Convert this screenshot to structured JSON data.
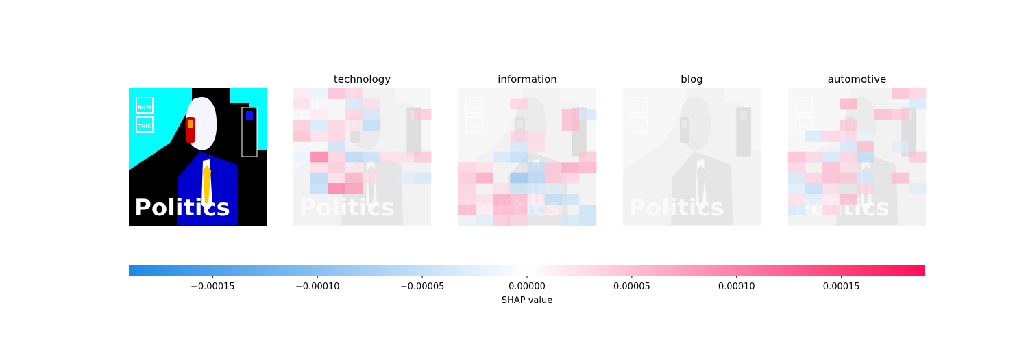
{
  "chart_data": {
    "type": "heatmap",
    "description_free": true,
    "panels": [
      {
        "name": "original",
        "title": "",
        "kind": "image"
      },
      {
        "name": "technology",
        "title": "technology",
        "kind": "shap",
        "values": [
          [
            2e-05,
            -2e-05,
            6e-05,
            4e-05,
            0.0,
            0.0,
            0.0,
            0.0
          ],
          [
            3e-05,
            0.0,
            0.0,
            -4e-05,
            3e-05,
            0.0,
            0.0,
            0.0
          ],
          [
            0.0,
            2e-05,
            0.0,
            4e-05,
            -4e-05,
            0.0,
            0.0,
            5e-05
          ],
          [
            5e-05,
            -4e-05,
            4e-05,
            2e-05,
            -6e-05,
            0.0,
            0.0,
            0.0
          ],
          [
            6e-05,
            3e-05,
            4e-05,
            0.0,
            0.0,
            0.0,
            0.0,
            0.0
          ],
          [
            0.0,
            0.0,
            -5e-05,
            0.0,
            0.0,
            0.0,
            0.0,
            0.0
          ],
          [
            -2e-05,
            0.00012,
            4e-05,
            -7e-05,
            -5e-05,
            3e-05,
            3e-05,
            5e-05
          ],
          [
            0.0,
            3e-05,
            5e-05,
            2e-05,
            0.0,
            0.0,
            0.0,
            0.0
          ],
          [
            0.0,
            -7e-05,
            3e-05,
            7e-05,
            3e-05,
            0.0,
            -3e-05,
            -4e-05
          ],
          [
            0.0,
            -6e-05,
            0.00012,
            9e-05,
            0.0,
            0.0,
            0.0,
            0.0
          ],
          [
            0.0,
            0.0,
            0.0,
            0.0,
            0.0,
            0.0,
            0.0,
            0.0
          ],
          [
            0.0,
            0.0,
            0.0,
            0.0,
            0.0,
            0.0,
            0.0,
            0.0
          ],
          [
            0.0,
            0.0,
            0.0,
            0.0,
            0.0,
            0.0,
            0.0,
            0.0
          ]
        ]
      },
      {
        "name": "information",
        "title": "information",
        "kind": "shap",
        "values": [
          [
            0.0,
            0.0,
            0.0,
            0.0,
            0.0,
            0.0,
            0.0,
            0.0
          ],
          [
            0.0,
            0.0,
            0.0,
            4e-05,
            0.0,
            0.0,
            0.0,
            0.0
          ],
          [
            0.0,
            0.0,
            0.0,
            0.0,
            0.0,
            0.0,
            6e-05,
            -4e-05
          ],
          [
            0.0,
            0.0,
            0.0,
            0.0,
            0.0,
            0.0,
            6e-05,
            0.0
          ],
          [
            0.0,
            0.0,
            0.0,
            4e-05,
            3e-05,
            0.0,
            0.0,
            0.0
          ],
          [
            0.0,
            0.0,
            0.0,
            -4e-05,
            3e-05,
            0.0,
            0.0,
            0.0
          ],
          [
            0.0,
            0.0,
            -4e-05,
            -6e-05,
            0.0,
            0.0,
            0.0,
            5e-05
          ],
          [
            4e-05,
            3e-05,
            0.0,
            0.0,
            -6e-05,
            5e-05,
            8e-05,
            7e-05
          ],
          [
            5e-05,
            8e-05,
            0.0,
            -0.0001,
            -7e-05,
            5e-05,
            4e-05,
            0.0
          ],
          [
            4e-05,
            0.0,
            3e-05,
            -5e-05,
            -4e-05,
            -3e-05,
            0.0,
            0.0
          ],
          [
            4e-05,
            3e-05,
            8e-05,
            6e-05,
            2e-05,
            -6e-05,
            -5e-05,
            0.0
          ],
          [
            7e-05,
            2e-05,
            7e-05,
            6e-05,
            -3e-05,
            2e-05,
            0.0,
            -5e-05
          ],
          [
            -2e-05,
            -3e-05,
            5e-05,
            4e-05,
            0.0,
            0.0,
            -4e-05,
            -5e-05
          ]
        ]
      },
      {
        "name": "blog",
        "title": "blog",
        "kind": "shap",
        "values": [
          [
            0.0,
            0.0,
            0.0,
            0.0,
            0.0,
            0.0,
            0.0,
            0.0
          ],
          [
            0.0,
            0.0,
            0.0,
            0.0,
            0.0,
            0.0,
            0.0,
            0.0
          ],
          [
            0.0,
            0.0,
            0.0,
            0.0,
            0.0,
            0.0,
            0.0,
            0.0
          ],
          [
            0.0,
            0.0,
            0.0,
            0.0,
            0.0,
            0.0,
            0.0,
            0.0
          ],
          [
            0.0,
            0.0,
            0.0,
            0.0,
            0.0,
            0.0,
            0.0,
            0.0
          ],
          [
            0.0,
            0.0,
            0.0,
            0.0,
            0.0,
            0.0,
            0.0,
            0.0
          ],
          [
            0.0,
            0.0,
            0.0,
            0.0,
            0.0,
            0.0,
            0.0,
            0.0
          ],
          [
            0.0,
            0.0,
            0.0,
            0.0,
            0.0,
            0.0,
            0.0,
            0.0
          ],
          [
            0.0,
            0.0,
            0.0,
            0.0,
            0.0,
            0.0,
            0.0,
            0.0
          ],
          [
            0.0,
            0.0,
            0.0,
            0.0,
            0.0,
            0.0,
            0.0,
            0.0
          ],
          [
            0.0,
            0.0,
            0.0,
            0.0,
            0.0,
            0.0,
            0.0,
            0.0
          ],
          [
            0.0,
            0.0,
            0.0,
            0.0,
            0.0,
            0.0,
            0.0,
            0.0
          ],
          [
            0.0,
            0.0,
            0.0,
            0.0,
            0.0,
            0.0,
            0.0,
            0.0
          ]
        ]
      },
      {
        "name": "automotive",
        "title": "automotive",
        "kind": "shap",
        "values": [
          [
            0.0,
            0.0,
            0.0,
            0.0,
            0.0,
            0.0,
            6e-05,
            4e-05
          ],
          [
            0.0,
            0.0,
            0.0,
            7e-05,
            0.0,
            0.0,
            0.0,
            -4e-05
          ],
          [
            0.0,
            0.0,
            0.0,
            0.0,
            0.0,
            6e-05,
            5e-05,
            0.0
          ],
          [
            0.0,
            0.0,
            0.0,
            5e-05,
            0.0,
            0.0,
            0.0,
            0.0
          ],
          [
            0.0,
            -4e-05,
            4e-05,
            3e-05,
            -2e-05,
            0.0,
            0.0,
            0.0
          ],
          [
            0.0,
            0.0,
            0.0,
            -4e-05,
            6e-05,
            0.0,
            -3e-05,
            0.0
          ],
          [
            6e-05,
            4e-05,
            -4e-05,
            4e-05,
            -6e-05,
            0.0,
            0.0,
            5e-05
          ],
          [
            4e-05,
            0.0,
            6e-05,
            3e-05,
            0.0,
            0.0,
            0.0,
            0.0
          ],
          [
            -4e-05,
            4e-05,
            6e-05,
            5e-05,
            -4e-05,
            0.0,
            6e-05,
            0.0
          ],
          [
            -3e-05,
            -6e-05,
            3e-05,
            0.0,
            4e-05,
            0.0,
            0.0,
            -3e-05
          ],
          [
            3e-05,
            -3e-05,
            2e-05,
            6e-05,
            0.0,
            0.0,
            0.0,
            0.0
          ],
          [
            -4e-05,
            0.0,
            4e-05,
            0.0,
            0.0,
            0.0,
            0.0,
            0.0
          ],
          [
            0.0,
            0.0,
            0.0,
            0.0,
            0.0,
            0.0,
            0.0,
            0.0
          ]
        ]
      }
    ],
    "image_text": {
      "now_label": "NOW",
      "this_label": "THIS",
      "caption": "Politics"
    },
    "colorbar": {
      "label": "SHAP value",
      "ticks": [
        {
          "value": -0.00015,
          "label": "−0.00015"
        },
        {
          "value": -0.0001,
          "label": "−0.00010"
        },
        {
          "value": -5e-05,
          "label": "−0.00005"
        },
        {
          "value": 0.0,
          "label": "0.00000"
        },
        {
          "value": 5e-05,
          "label": "0.00005"
        },
        {
          "value": 0.0001,
          "label": "0.00010"
        },
        {
          "value": 0.00015,
          "label": "0.00015"
        }
      ],
      "min": -0.00019,
      "max": 0.00019,
      "negative_color": "#1e88e5",
      "neutral_color": "#ffffff",
      "positive_color": "#ff0d57"
    }
  }
}
